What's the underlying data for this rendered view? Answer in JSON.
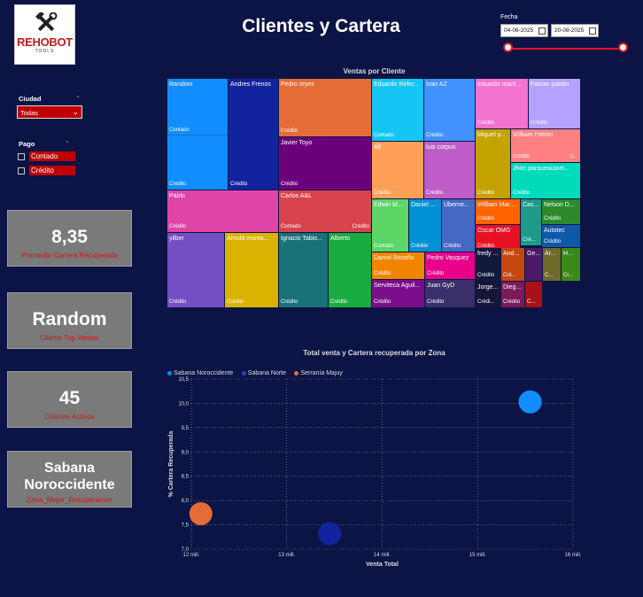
{
  "brand": {
    "name": "REHOBOT",
    "tagline": "TOOLS"
  },
  "title": "Clientes y Cartera",
  "date_filter": {
    "label": "Fecha",
    "start": "04-06-2025",
    "end": "20-08-2025"
  },
  "filters": {
    "ciudad": {
      "label": "Ciudad",
      "value": "Todas"
    },
    "pago": {
      "label": "Pago",
      "options": [
        "Contado",
        "Crédito"
      ]
    }
  },
  "kpis": [
    {
      "value": "8,35",
      "label": "Promedio Cartera Recuperada"
    },
    {
      "value": "Random",
      "label": "Cliente Top Ventas"
    },
    {
      "value": "45",
      "label": "Clientes Activos"
    },
    {
      "value": "Sabana Noroccidente",
      "label": "Zona_Mejor_Recuperacion"
    }
  ],
  "treemap": {
    "title": "Ventas por Cliente",
    "cells": [
      {
        "name": "Random",
        "c1": "Contado",
        "c2": "Crédito",
        "color": "#118dff"
      },
      {
        "name": "Andres Frenos",
        "c1": "",
        "c2": "Crédito",
        "color": "#12239e"
      },
      {
        "name": "Pedro reyes",
        "c1": "Crédito",
        "c2": "",
        "color": "#e66c37"
      },
      {
        "name": "Javier Toyo",
        "c1": "",
        "c2": "Crédito",
        "color": "#6b007b"
      },
      {
        "name": "Pablo",
        "c1": "Crédito",
        "c2": "",
        "color": "#e044a7"
      },
      {
        "name": "Carlos A&L",
        "c1": "Contado",
        "c2": "Crédito",
        "color": "#d9434e"
      },
      {
        "name": "yilber",
        "c1": "Crédito",
        "c2": "",
        "color": "#744ec2"
      },
      {
        "name": "Arnold monta...",
        "c1": "Crédito",
        "c2": "",
        "color": "#d9b300"
      },
      {
        "name": "Ignacio Tabio...",
        "c1": "Crédito",
        "c2": "",
        "color": "#197278"
      },
      {
        "name": "Alberto",
        "c1": "Crédito",
        "c2": "",
        "color": "#1aab40"
      },
      {
        "name": "Eduardo Refer...",
        "c1": "Contado",
        "c2": "",
        "color": "#15c6f4"
      },
      {
        "name": "Ivan AZ",
        "c1": "Crédito",
        "c2": "",
        "color": "#4092ff"
      },
      {
        "name": "Ali",
        "c1": "Crédito",
        "c2": "",
        "color": "#ffa058"
      },
      {
        "name": "luis corpus",
        "c1": "Crédito",
        "c2": "",
        "color": "#be5dc9"
      },
      {
        "name": "eduardo marti...",
        "c1": "Crédito",
        "c2": "",
        "color": "#f472d0"
      },
      {
        "name": "Fabian patrón",
        "c1": "Crédito",
        "c2": "",
        "color": "#b5a1ff"
      },
      {
        "name": "Miguel y...",
        "c1": "Crédito",
        "c2": "",
        "color": "#c4a200"
      },
      {
        "name": "William Patrón",
        "c1": "Crédito",
        "c2": "C...",
        "color": "#ff8080"
      },
      {
        "name": "Jhon parqueautom...",
        "c1": "Crédito",
        "c2": "",
        "color": "#00dbbc"
      },
      {
        "name": "Edwin M...",
        "c1": "Contado",
        "c2": "",
        "color": "#5bd667"
      },
      {
        "name": "Daniel ...",
        "c1": "Crédito",
        "c2": "",
        "color": "#0091d5"
      },
      {
        "name": "Uberne...",
        "c1": "Crédito",
        "c2": "",
        "color": "#4668c5"
      },
      {
        "name": "William Mar...",
        "c1": "Crédito",
        "c2": "",
        "color": "#ff6300"
      },
      {
        "name": "Cas...",
        "c1": "Cré...",
        "c2": "",
        "color": "#1c9a8a"
      },
      {
        "name": "Nelson D...",
        "c1": "Crédito",
        "c2": "",
        "color": "#2c8a2c"
      },
      {
        "name": "Oscar OMG",
        "c1": "Crédito",
        "c2": "",
        "color": "#e81123"
      },
      {
        "name": "Autotec",
        "c1": "Crédito",
        "c2": "",
        "color": "#0e58a8"
      },
      {
        "name": "Daniel Briceño",
        "c1": "Crédito",
        "c2": "",
        "color": "#f28500"
      },
      {
        "name": "Pedro Vasquez",
        "c1": "Crédito",
        "c2": "",
        "color": "#e8008a"
      },
      {
        "name": "fredy ...",
        "c1": "Crédito",
        "c2": "",
        "color": "#12193d"
      },
      {
        "name": "And...",
        "c1": "Cré...",
        "c2": "",
        "color": "#c5480f"
      },
      {
        "name": "Ge...",
        "c1": "",
        "c2": "",
        "color": "#4a1a66"
      },
      {
        "name": "Ar...",
        "c1": "C...",
        "c2": "",
        "color": "#6e6a2a"
      },
      {
        "name": "H...",
        "c1": "Cr...",
        "c2": "",
        "color": "#3a8a1a"
      },
      {
        "name": "Serviteca Aguil...",
        "c1": "Crédito",
        "c2": "",
        "color": "#7a0e8a"
      },
      {
        "name": "Juan GyD",
        "c1": "Crédito",
        "c2": "",
        "color": "#3a2f6b"
      },
      {
        "name": "Jorge...",
        "c1": "Crédi...",
        "c2": "",
        "color": "#16163a"
      },
      {
        "name": "Dieg...",
        "c1": "Crédito",
        "c2": "",
        "color": "#7a1a5a"
      },
      {
        "name": "",
        "c1": "C...",
        "c2": "",
        "color": "#a8101a"
      }
    ]
  },
  "chart_data": {
    "type": "scatter",
    "title": "Total venta y Cartera recuperada por Zona",
    "xlabel": "Venta Total",
    "ylabel": "% Cartera Recuperada",
    "xlim": [
      12,
      16
    ],
    "ylim": [
      7.0,
      10.5
    ],
    "x_ticks": [
      "12 mill.",
      "13 mill.",
      "14 mill.",
      "15 mill.",
      "16 mill."
    ],
    "y_ticks": [
      "7,0",
      "7,5",
      "8,0",
      "8,5",
      "9,0",
      "9,5",
      "10,0",
      "10,5"
    ],
    "series": [
      {
        "name": "Sabana Noroccidente",
        "color": "#118dff",
        "x": 15.55,
        "y": 10.03
      },
      {
        "name": "Sabana Norte",
        "color": "#12239e",
        "x": 13.45,
        "y": 7.32
      },
      {
        "name": "Serranía Majuy",
        "color": "#e66c37",
        "x": 12.1,
        "y": 7.73
      }
    ]
  }
}
